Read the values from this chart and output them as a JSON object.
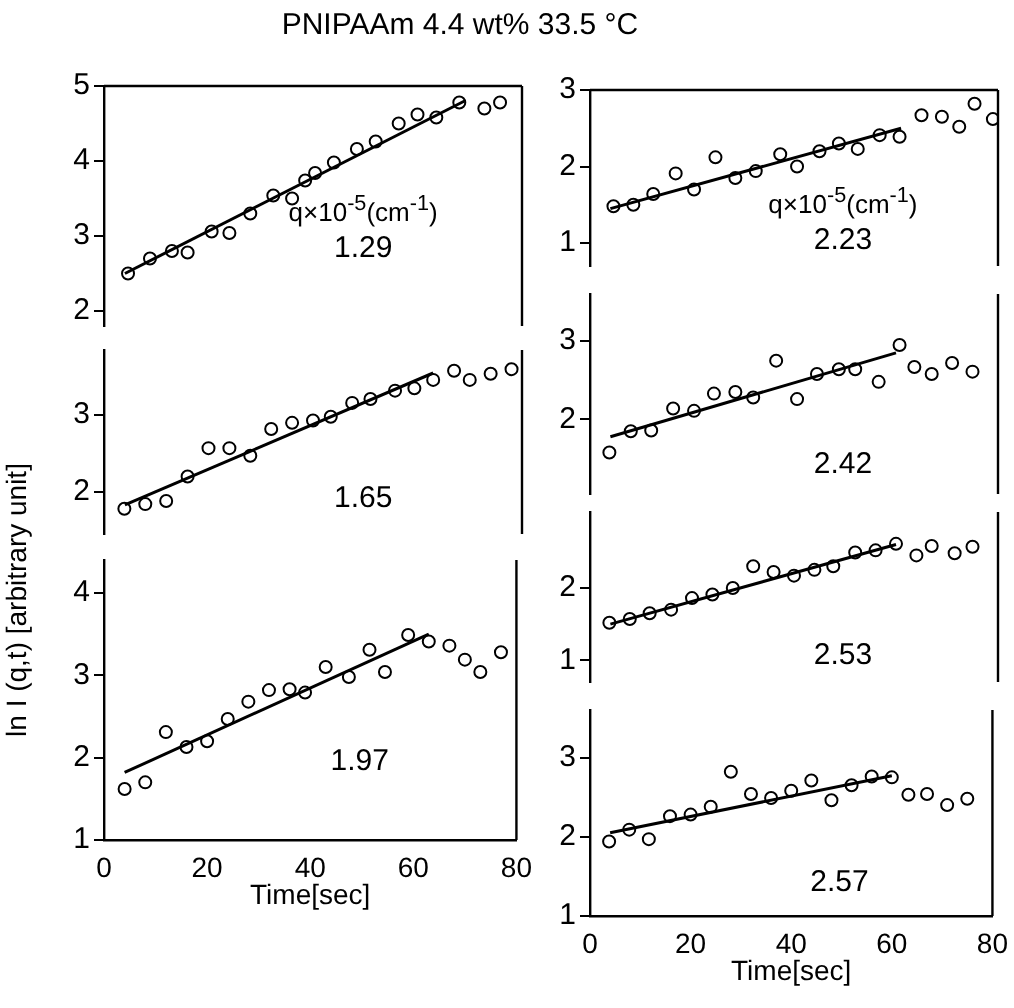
{
  "chart_data": [
    {
      "type": "scatter",
      "title": "PNIPAAm 4.4 wt%  33.5 °C",
      "annotations": [
        "q×10$^{-5}$(cm$^{-1}$)"
      ],
      "xlim": [
        0,
        80
      ],
      "xticks": [
        0,
        20,
        40,
        60,
        80
      ],
      "ylim": [
        1.8,
        5
      ],
      "yticks": [
        2,
        3,
        4,
        5
      ],
      "tick_labels": "y",
      "marker": "circle",
      "series": [
        {
          "name": "1.29",
          "color": "#000000",
          "x": [
            4.6,
            8.8,
            13,
            16,
            20.6,
            24,
            28,
            32.4,
            36,
            38.5,
            40.4,
            44,
            48.4,
            52,
            56.4,
            60,
            63.6,
            68,
            72.8,
            75.8
          ],
          "values": [
            2.5,
            2.7,
            2.8,
            2.78,
            3.06,
            3.04,
            3.3,
            3.54,
            3.5,
            3.74,
            3.84,
            3.98,
            4.16,
            4.26,
            4.5,
            4.62,
            4.58,
            4.78,
            4.7,
            4.78
          ]
        },
        {
          "type": "line",
          "marker": "none",
          "color": "#000000",
          "x": [
            4,
            69
          ],
          "values": [
            2.5,
            4.8
          ]
        }
      ]
    },
    {
      "type": "scatter",
      "ylabel": "ln I (q,t) [arbitrary unit]",
      "xlim": [
        0,
        80
      ],
      "xticks": [
        0,
        20,
        40,
        60,
        80
      ],
      "ylim": [
        1.45,
        3.85
      ],
      "yticks": [
        2,
        3
      ],
      "tick_labels": "y",
      "marker": "circle",
      "series": [
        {
          "name": "1.65",
          "color": "#000000",
          "x": [
            3.9,
            7.9,
            11.9,
            16,
            20,
            24,
            28,
            32,
            36,
            40,
            43.4,
            47.5,
            51,
            55.7,
            59.4,
            63,
            67,
            70,
            74,
            78
          ],
          "values": [
            1.78,
            1.84,
            1.88,
            2.2,
            2.57,
            2.57,
            2.47,
            2.82,
            2.9,
            2.93,
            2.98,
            3.16,
            3.21,
            3.32,
            3.35,
            3.46,
            3.58,
            3.46,
            3.54,
            3.6
          ]
        },
        {
          "type": "line",
          "marker": "none",
          "color": "#000000",
          "x": [
            4,
            63
          ],
          "values": [
            1.83,
            3.55
          ]
        }
      ]
    },
    {
      "type": "scatter",
      "xlabel": "Time[sec]",
      "xlim": [
        0,
        80
      ],
      "xticks": [
        0,
        20,
        40,
        60,
        80
      ],
      "ylim": [
        1,
        4.4
      ],
      "yticks": [
        1,
        2,
        3,
        4
      ],
      "marker": "circle",
      "series": [
        {
          "name": "1.97",
          "color": "#000000",
          "x": [
            4,
            8,
            12,
            16,
            20,
            24,
            28,
            32,
            36,
            39,
            43,
            47.5,
            51.5,
            54.5,
            59,
            63,
            67,
            70,
            73,
            77
          ],
          "values": [
            1.62,
            1.7,
            2.31,
            2.13,
            2.2,
            2.47,
            2.68,
            2.82,
            2.83,
            2.79,
            3.1,
            2.98,
            3.31,
            3.04,
            3.49,
            3.41,
            3.36,
            3.19,
            3.04,
            3.28
          ]
        },
        {
          "type": "line",
          "marker": "none",
          "color": "#000000",
          "x": [
            4,
            63
          ],
          "values": [
            1.82,
            3.5
          ]
        }
      ]
    },
    {
      "type": "scatter",
      "annotations": [
        "q×10$^{-5}$(cm$^{-1}$)"
      ],
      "xlim": [
        0,
        80
      ],
      "xticks": [
        0,
        20,
        40,
        60,
        80
      ],
      "ylim": [
        0.7,
        3
      ],
      "yticks": [
        1,
        2,
        3
      ],
      "tick_labels": "y",
      "marker": "circle",
      "series": [
        {
          "name": "2.23",
          "color": "#000000",
          "x": [
            4.6,
            8.5,
            12.4,
            16.8,
            20.4,
            24.6,
            28.5,
            32.5,
            37.3,
            40.6,
            45,
            48.8,
            52.5,
            56.8,
            60.7,
            65,
            69,
            72.4,
            75.4,
            79
          ],
          "values": [
            1.48,
            1.5,
            1.64,
            1.91,
            1.7,
            2.12,
            1.85,
            1.94,
            2.16,
            2.0,
            2.2,
            2.3,
            2.23,
            2.41,
            2.39,
            2.67,
            2.65,
            2.52,
            2.82,
            2.62
          ]
        },
        {
          "type": "line",
          "marker": "none",
          "color": "#000000",
          "x": [
            4,
            61
          ],
          "values": [
            1.45,
            2.5
          ]
        }
      ]
    },
    {
      "type": "scatter",
      "xlim": [
        0,
        80
      ],
      "xticks": [
        0,
        20,
        40,
        60,
        80
      ],
      "ylim": [
        1.05,
        3.6
      ],
      "yticks": [
        2,
        3
      ],
      "tick_labels": "y",
      "marker": "circle",
      "series": [
        {
          "name": "2.42",
          "color": "#000000",
          "x": [
            3.8,
            8,
            12,
            16.3,
            20.4,
            24.3,
            28.5,
            32,
            36.5,
            40.6,
            44.5,
            48.8,
            52,
            56.6,
            60.7,
            63.6,
            67,
            71,
            75
          ],
          "values": [
            1.58,
            1.85,
            1.86,
            2.14,
            2.11,
            2.33,
            2.35,
            2.28,
            2.75,
            2.26,
            2.58,
            2.64,
            2.64,
            2.48,
            2.95,
            2.67,
            2.58,
            2.72,
            2.61
          ]
        },
        {
          "type": "line",
          "marker": "none",
          "color": "#000000",
          "x": [
            4,
            60
          ],
          "values": [
            1.78,
            2.85
          ]
        }
      ]
    },
    {
      "type": "scatter",
      "xlim": [
        0,
        80
      ],
      "xticks": [
        0,
        20,
        40,
        60,
        80
      ],
      "ylim": [
        0.7,
        3.05
      ],
      "yticks": [
        1,
        2
      ],
      "tick_labels": "y",
      "marker": "circle",
      "series": [
        {
          "name": "2.53",
          "color": "#000000",
          "x": [
            3.8,
            7.8,
            11.7,
            15.9,
            20,
            24,
            28,
            32,
            36,
            40,
            44,
            47.7,
            52,
            56,
            60,
            64,
            67,
            71.5,
            75
          ],
          "values": [
            1.52,
            1.57,
            1.65,
            1.7,
            1.86,
            1.91,
            2.0,
            2.3,
            2.22,
            2.17,
            2.25,
            2.3,
            2.49,
            2.52,
            2.61,
            2.45,
            2.58,
            2.48,
            2.57
          ]
        },
        {
          "type": "line",
          "marker": "none",
          "color": "#000000",
          "x": [
            4,
            60
          ],
          "values": [
            1.5,
            2.6
          ]
        }
      ]
    },
    {
      "type": "scatter",
      "xlabel": "Time[sec]",
      "xlim": [
        0,
        80
      ],
      "xticks": [
        0,
        20,
        40,
        60,
        80
      ],
      "ylim": [
        1,
        3.6
      ],
      "yticks": [
        1,
        2,
        3
      ],
      "marker": "circle",
      "series": [
        {
          "name": "2.57",
          "color": "#000000",
          "x": [
            3.8,
            7.8,
            11.7,
            15.9,
            20,
            24,
            28,
            32,
            36,
            40,
            44,
            48,
            52,
            56,
            60,
            63.3,
            67,
            71,
            75
          ],
          "values": [
            1.94,
            2.09,
            1.97,
            2.26,
            2.28,
            2.38,
            2.82,
            2.54,
            2.49,
            2.58,
            2.71,
            2.46,
            2.65,
            2.76,
            2.75,
            2.53,
            2.54,
            2.4,
            2.48
          ]
        },
        {
          "type": "line",
          "marker": "none",
          "color": "#000000",
          "x": [
            4,
            60
          ],
          "values": [
            2.05,
            2.77
          ]
        }
      ]
    }
  ]
}
